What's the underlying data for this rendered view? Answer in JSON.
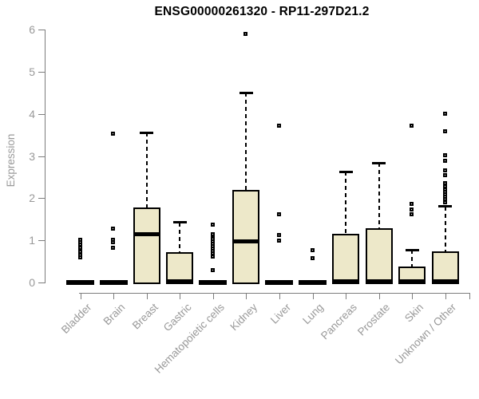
{
  "chart_data": {
    "type": "boxplot",
    "title": "ENSG00000261320 - RP11-297D21.2",
    "xlabel": "",
    "ylabel": "Expression",
    "ylim": [
      0,
      6
    ],
    "yticks": [
      0,
      1,
      2,
      3,
      4,
      5,
      6
    ],
    "grid": false,
    "legend": "none",
    "colors": {
      "box_fill": "#EDE8C9",
      "box_border": "#000000",
      "median": "#000000",
      "whisker": "#000000",
      "outlier": "#000000",
      "axis": "#7d7d7d",
      "tick_label": "#999999",
      "title": "#000000"
    },
    "categories": [
      "Bladder",
      "Brain",
      "Breast",
      "Gastric",
      "Hematopoietic cells",
      "Kidney",
      "Liver",
      "Lung",
      "Pancreas",
      "Prostate",
      "Skin",
      "Unknown / Other"
    ],
    "series": [
      {
        "name": "Bladder",
        "q1": 0,
        "median": 0,
        "q3": 0,
        "whisker_low": 0,
        "whisker_high": 0,
        "outliers": [
          0.6,
          0.65,
          0.72,
          0.78,
          0.83,
          0.9,
          0.96,
          1.02
        ]
      },
      {
        "name": "Brain",
        "q1": 0,
        "median": 0,
        "q3": 0,
        "whisker_low": 0,
        "whisker_high": 0,
        "outliers": [
          0.83,
          0.95,
          1.02,
          1.27,
          3.53
        ]
      },
      {
        "name": "Breast",
        "q1": 0,
        "median": 1.15,
        "q3": 1.78,
        "whisker_low": 0,
        "whisker_high": 3.55,
        "outliers": []
      },
      {
        "name": "Gastric",
        "q1": 0,
        "median": 0.03,
        "q3": 0.71,
        "whisker_low": 0,
        "whisker_high": 1.42,
        "outliers": []
      },
      {
        "name": "Hematopoietic cells",
        "q1": 0,
        "median": 0,
        "q3": 0,
        "whisker_low": 0,
        "whisker_high": 0,
        "outliers": [
          0.3,
          0.61,
          0.7,
          0.75,
          0.8,
          0.86,
          0.92,
          0.98,
          1.04,
          1.1,
          1.15,
          1.37
        ]
      },
      {
        "name": "Kidney",
        "q1": 0,
        "median": 0.97,
        "q3": 2.2,
        "whisker_low": 0,
        "whisker_high": 4.5,
        "outliers": [
          5.9
        ]
      },
      {
        "name": "Liver",
        "q1": 0,
        "median": 0,
        "q3": 0,
        "whisker_low": 0,
        "whisker_high": 0,
        "outliers": [
          0.99,
          1.12,
          1.61,
          3.71
        ]
      },
      {
        "name": "Lung",
        "q1": 0,
        "median": 0,
        "q3": 0,
        "whisker_low": 0,
        "whisker_high": 0,
        "outliers": [
          0.58,
          0.76
        ]
      },
      {
        "name": "Pancreas",
        "q1": 0,
        "median": 0.03,
        "q3": 1.15,
        "whisker_low": 0,
        "whisker_high": 2.63,
        "outliers": []
      },
      {
        "name": "Prostate",
        "q1": 0,
        "median": 0.03,
        "q3": 1.29,
        "whisker_low": 0,
        "whisker_high": 2.83,
        "outliers": []
      },
      {
        "name": "Skin",
        "q1": 0,
        "median": 0.03,
        "q3": 0.38,
        "whisker_low": 0,
        "whisker_high": 0.77,
        "outliers": [
          1.61,
          1.73,
          1.87,
          3.71
        ]
      },
      {
        "name": "Unknown / Other",
        "q1": 0,
        "median": 0.03,
        "q3": 0.74,
        "whisker_low": 0,
        "whisker_high": 1.8,
        "outliers": [
          1.91,
          1.97,
          2.03,
          2.09,
          2.15,
          2.21,
          2.28,
          2.35,
          2.54,
          2.66,
          2.88,
          3.01,
          3.58,
          4.0
        ]
      }
    ]
  }
}
